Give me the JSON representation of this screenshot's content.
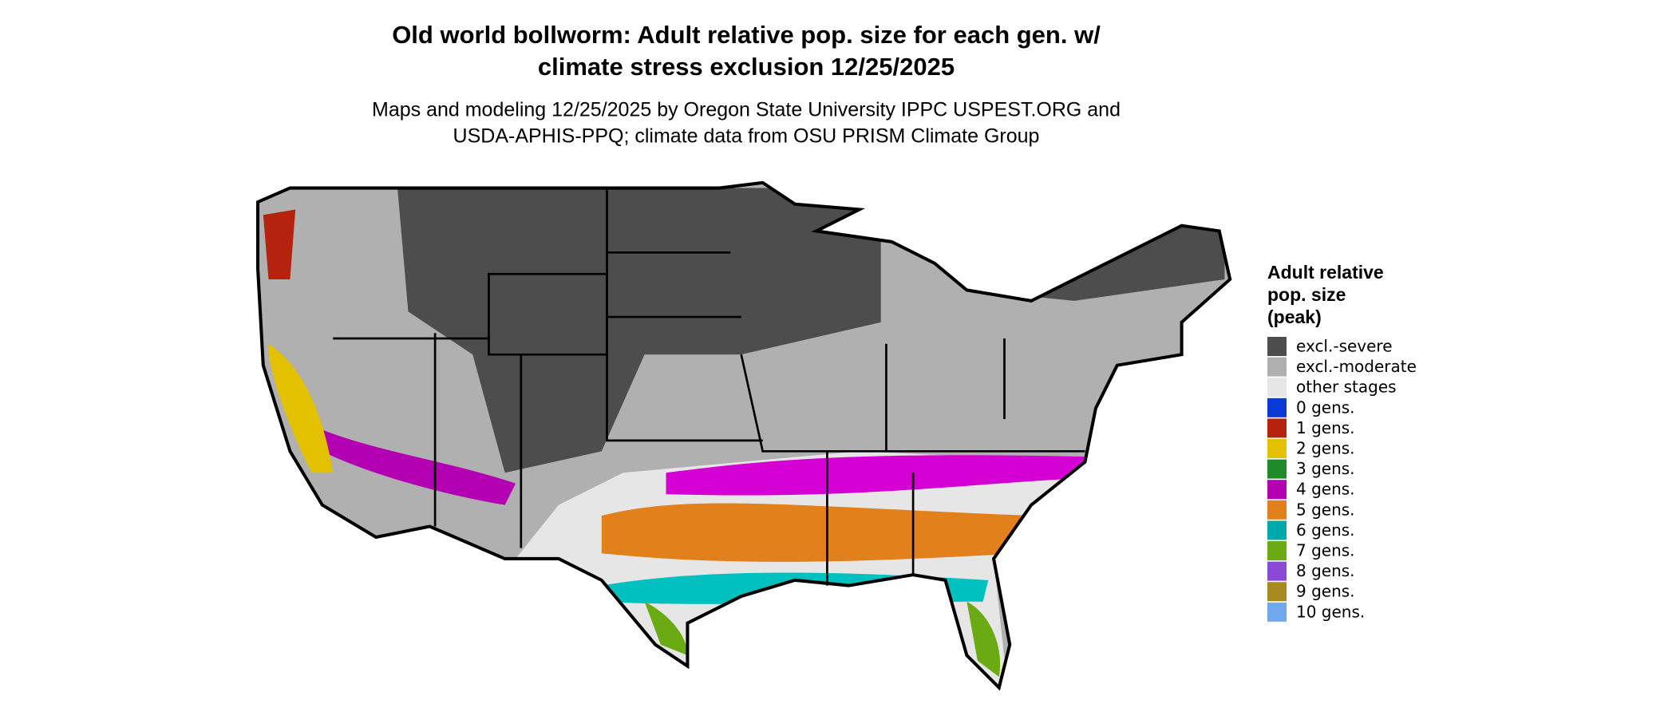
{
  "title_lines": [
    "Old world bollworm: Adult relative pop. size for each gen. w/",
    "climate stress exclusion 12/25/2025"
  ],
  "subtitle_lines": [
    "Maps and modeling 12/25/2025 by Oregon State University IPPC USPEST.ORG and",
    "USDA-APHIS-PPQ; climate data from OSU PRISM Climate Group"
  ],
  "legend": {
    "title_lines": [
      "Adult relative",
      "pop. size",
      "(peak)"
    ],
    "items": [
      {
        "label": "excl.-severe",
        "color": "#4d4d4d"
      },
      {
        "label": "excl.-moderate",
        "color": "#b0b0b0"
      },
      {
        "label": "other stages",
        "color": "#e6e6e6"
      },
      {
        "label": "0 gens.",
        "color": "#0a3ad6"
      },
      {
        "label": "1 gens.",
        "color": "#b5230f"
      },
      {
        "label": "2 gens.",
        "color": "#e3c000"
      },
      {
        "label": "3 gens.",
        "color": "#1f8a2a"
      },
      {
        "label": "4 gens.",
        "color": "#b300b3"
      },
      {
        "label": "5 gens.",
        "color": "#e2801c"
      },
      {
        "label": "6 gens.",
        "color": "#00aaaa"
      },
      {
        "label": "7 gens.",
        "color": "#6aaa12"
      },
      {
        "label": "8 gens.",
        "color": "#8a4ad6"
      },
      {
        "label": "9 gens.",
        "color": "#a88a20"
      },
      {
        "label": "10 gens.",
        "color": "#70a8ee"
      }
    ]
  }
}
